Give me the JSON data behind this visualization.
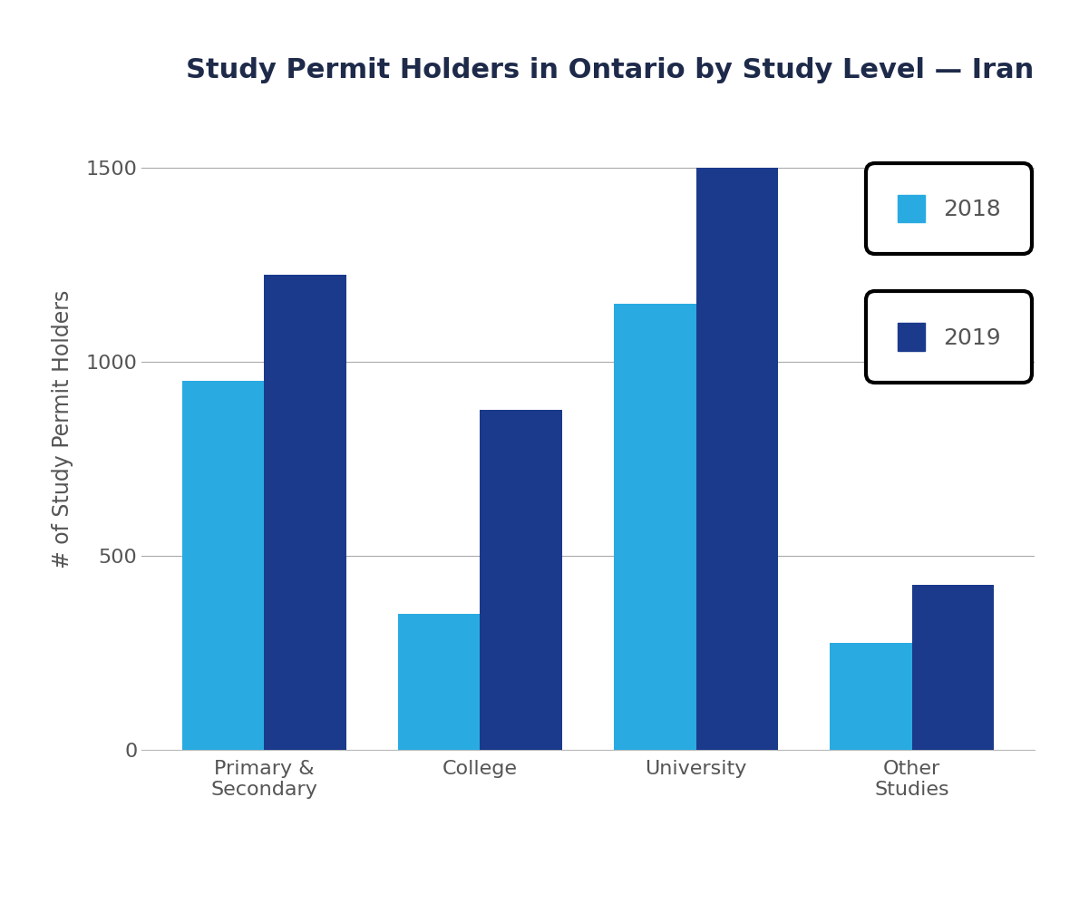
{
  "title": "Study Permit Holders in Ontario by Study Level — Iran",
  "ylabel": "# of Study Permit Holders",
  "categories": [
    "Primary &\nSecondary",
    "College",
    "University",
    "Other\nStudies"
  ],
  "values_2018": [
    950,
    350,
    1150,
    275
  ],
  "values_2019": [
    1225,
    875,
    1500,
    425
  ],
  "color_2018": "#29ABE2",
  "color_2019": "#1B3A8C",
  "ylim": [
    0,
    1650
  ],
  "yticks": [
    0,
    500,
    1000,
    1500
  ],
  "background_color": "#FFFFFF",
  "title_fontsize": 22,
  "title_color": "#1E2A4A",
  "label_fontsize": 17,
  "label_color": "#555555",
  "tick_fontsize": 16,
  "tick_color": "#555555",
  "legend_fontsize": 18,
  "bar_width": 0.38,
  "grid_color": "#AAAAAA",
  "legend_labels": [
    "2018",
    "2019"
  ]
}
